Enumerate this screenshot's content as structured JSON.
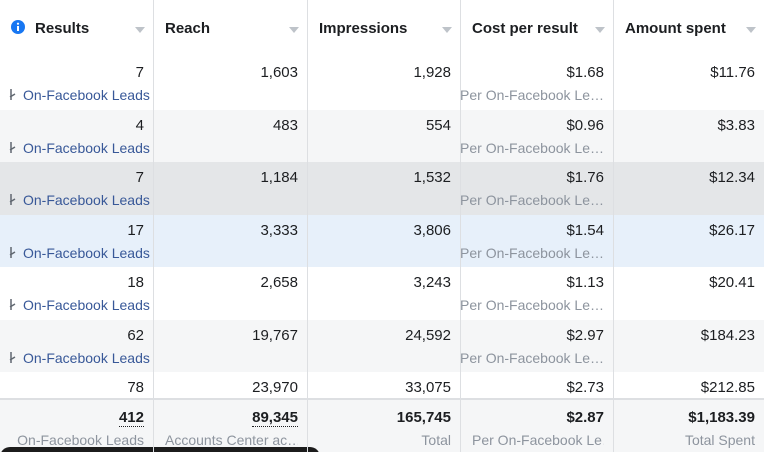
{
  "header": {
    "columns": [
      "Results",
      "Reach",
      "Impressions",
      "Cost per result",
      "Amount spent"
    ]
  },
  "rows": [
    {
      "cells": [
        "7",
        "1,603",
        "1,928",
        "$1.68",
        "$11.76"
      ],
      "results_label": "On-Facebook Leads",
      "cost_label": "Per On-Facebook Le…"
    },
    {
      "cells": [
        "4",
        "483",
        "554",
        "$0.96",
        "$3.83"
      ],
      "results_label": "On-Facebook Leads",
      "cost_label": "Per On-Facebook Le…"
    },
    {
      "cells": [
        "7",
        "1,184",
        "1,532",
        "$1.76",
        "$12.34"
      ],
      "results_label": "On-Facebook Leads",
      "cost_label": "Per On-Facebook Le…"
    },
    {
      "cells": [
        "17",
        "3,333",
        "3,806",
        "$1.54",
        "$26.17"
      ],
      "results_label": "On-Facebook Leads",
      "cost_label": "Per On-Facebook Le…"
    },
    {
      "cells": [
        "18",
        "2,658",
        "3,243",
        "$1.13",
        "$20.41"
      ],
      "results_label": "On-Facebook Leads",
      "cost_label": "Per On-Facebook Le…"
    },
    {
      "cells": [
        "62",
        "19,767",
        "24,592",
        "$2.97",
        "$184.23"
      ],
      "results_label": "On-Facebook Leads",
      "cost_label": "Per On-Facebook Le…"
    },
    {
      "cells": [
        "78",
        "23,970",
        "33,075",
        "$2.73",
        "$212.85"
      ]
    }
  ],
  "footer": {
    "cells": [
      "412",
      "89,345",
      "165,745",
      "$2.87",
      "$1,183.39"
    ],
    "labels": [
      "On-Facebook Leads",
      "Accounts Center ac…",
      "Total",
      "Per On-Facebook Le…",
      "Total Spent"
    ]
  }
}
